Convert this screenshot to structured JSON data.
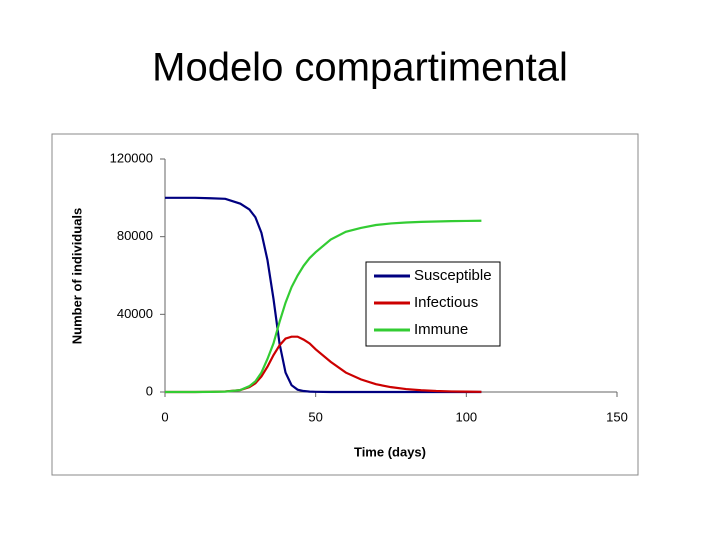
{
  "chart_data": {
    "type": "line",
    "title": "Modelo compartimental",
    "x_label": "Time (days)",
    "y_label": "Number of individuals",
    "x": [
      0,
      5,
      10,
      15,
      20,
      25,
      28,
      30,
      32,
      34,
      36,
      38,
      40,
      42,
      44,
      46,
      48,
      50,
      55,
      60,
      65,
      70,
      75,
      80,
      85,
      90,
      95,
      100,
      105
    ],
    "series": [
      {
        "name": "Susceptible",
        "color": "#000080",
        "values": [
          100000,
          100000,
          100000,
          99800,
          99500,
          97000,
          94000,
          90000,
          82000,
          68000,
          48000,
          25000,
          10000,
          3500,
          1200,
          500,
          200,
          100,
          0,
          0,
          0,
          0,
          0,
          0,
          0,
          0,
          0,
          0,
          0
        ]
      },
      {
        "name": "Infectious",
        "color": "#cc0000",
        "values": [
          0,
          0,
          0,
          100,
          300,
          1000,
          2500,
          4500,
          8000,
          13000,
          19000,
          24000,
          27500,
          28500,
          28500,
          27000,
          25000,
          22000,
          15500,
          10000,
          6500,
          4000,
          2500,
          1500,
          900,
          500,
          300,
          200,
          100
        ]
      },
      {
        "name": "Immune",
        "color": "#33cc33",
        "values": [
          0,
          0,
          0,
          50,
          200,
          1000,
          3000,
          5500,
          10000,
          17000,
          25000,
          36000,
          46000,
          54000,
          60000,
          65000,
          69000,
          72000,
          78500,
          82500,
          84500,
          86000,
          86800,
          87300,
          87600,
          87800,
          88000,
          88100,
          88200
        ]
      }
    ],
    "xlim": [
      0,
      150
    ],
    "xticks": [
      0,
      50,
      100,
      150
    ],
    "ylim": [
      0,
      120000
    ],
    "yticks": [
      0,
      40000,
      80000,
      120000
    ]
  }
}
